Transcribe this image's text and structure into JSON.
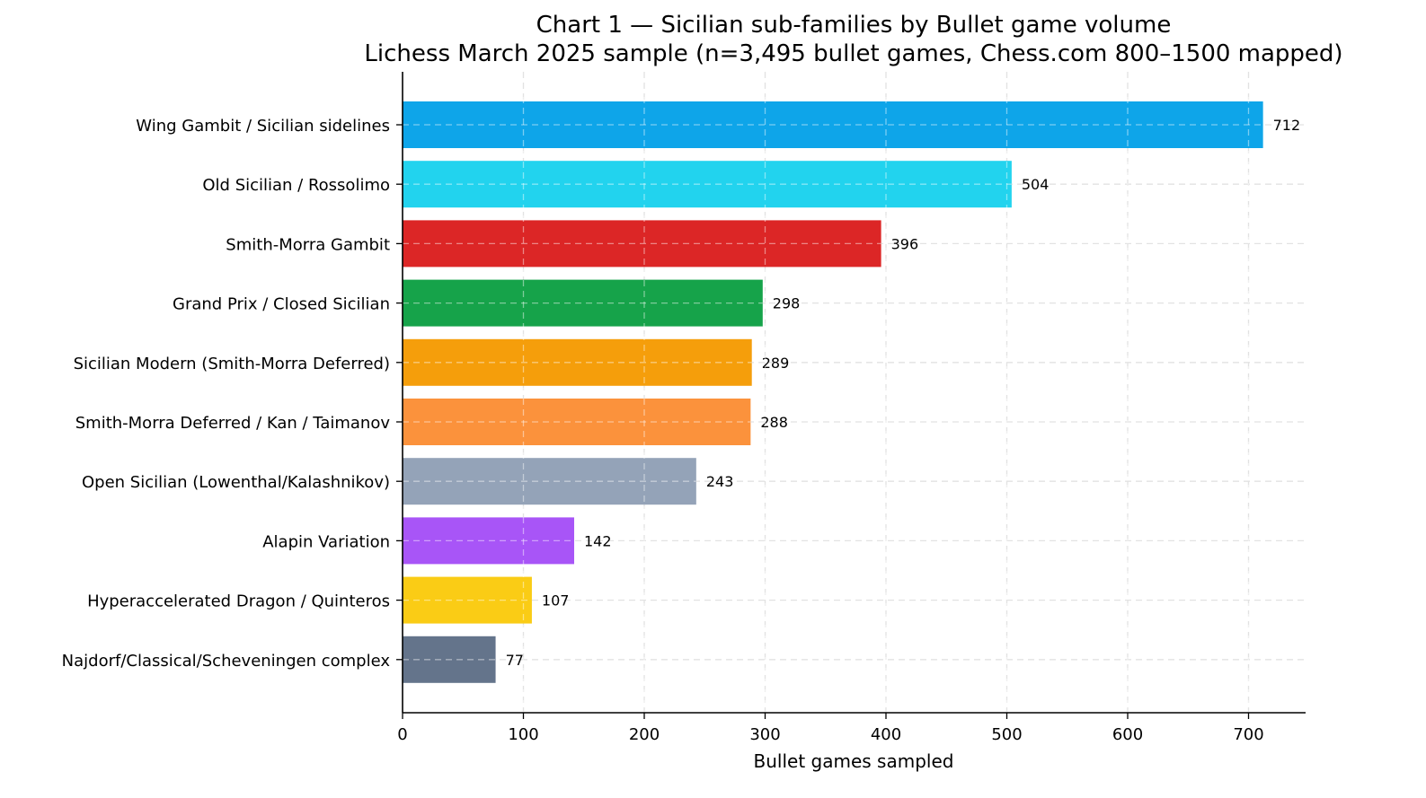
{
  "chart_data": {
    "type": "bar",
    "orientation": "horizontal",
    "title": "Chart 1 — Sicilian sub-families by Bullet game volume",
    "subtitle": "Lichess March 2025 sample (n=3,495 bullet games, Chess.com 800–1500 mapped)",
    "xlabel": "Bullet games sampled",
    "ylabel": "",
    "xlim": [
      0,
      747
    ],
    "xticks": [
      0,
      100,
      200,
      300,
      400,
      500,
      600,
      700
    ],
    "grid": true,
    "legend": "none",
    "categories": [
      "Wing Gambit / Sicilian sidelines",
      "Old Sicilian / Rossolimo",
      "Smith-Morra Gambit",
      "Grand Prix / Closed Sicilian",
      "Sicilian Modern (Smith-Morra Deferred)",
      "Smith-Morra Deferred / Kan / Taimanov",
      "Open Sicilian (Lowenthal/Kalashnikov)",
      "Alapin Variation",
      "Hyperaccelerated Dragon / Quinteros",
      "Najdorf/Classical/Scheveningen complex"
    ],
    "values": [
      712,
      504,
      396,
      298,
      289,
      288,
      243,
      142,
      107,
      77
    ],
    "colors": [
      "#0ea5e9",
      "#22d3ee",
      "#dc2626",
      "#16a34a",
      "#f59e0b",
      "#fb923c",
      "#94a3b8",
      "#a855f7",
      "#facc15",
      "#64748b"
    ]
  }
}
